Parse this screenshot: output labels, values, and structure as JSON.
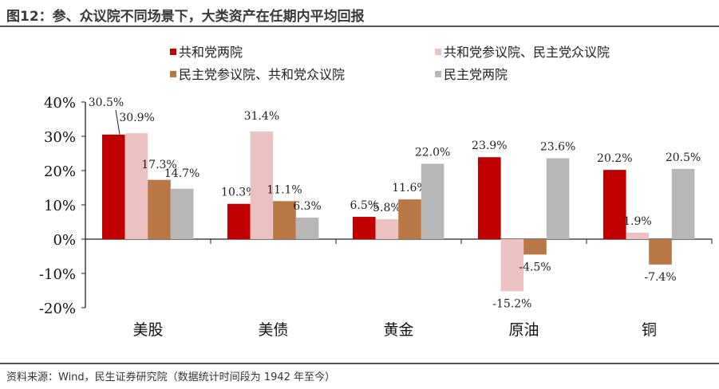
{
  "title": "图12：参、众议院不同场景下，大类资产在任期内平均回报",
  "source": "资料来源：Wind，民生证券研究院（数据统计时间段为 1942 年至今）",
  "chart_data": {
    "type": "bar",
    "categories": [
      "美股",
      "美债",
      "黄金",
      "原油",
      "铜"
    ],
    "series": [
      {
        "name": "共和党两院",
        "color": "#C00000",
        "values": [
          30.5,
          10.3,
          6.5,
          23.9,
          20.2
        ]
      },
      {
        "name": "共和党参议院、民主党众议院",
        "color": "#EBC1C1",
        "values": [
          30.9,
          31.4,
          5.8,
          -15.2,
          1.9
        ]
      },
      {
        "name": "民主党参议院、共和党众议院",
        "color": "#B87745",
        "values": [
          17.3,
          11.1,
          11.6,
          -4.5,
          -7.4
        ]
      },
      {
        "name": "民主党两院",
        "color": "#B7B7B7",
        "values": [
          14.7,
          6.3,
          22.0,
          23.6,
          20.5
        ]
      }
    ],
    "yticks": [
      "40%",
      "30%",
      "20%",
      "10%",
      "0%",
      "-10%",
      "-20%"
    ],
    "ylim": [
      -20,
      40
    ],
    "unit": "%",
    "legend": "top",
    "grid": false
  }
}
